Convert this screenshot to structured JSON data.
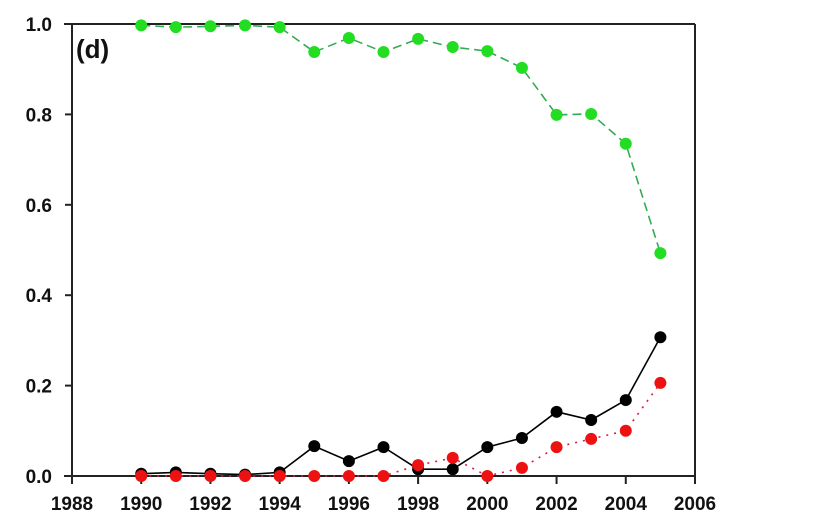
{
  "chart_data": {
    "type": "line",
    "title": "",
    "panel_label": "(d)",
    "xlabel": "",
    "ylabel": "",
    "xlim": [
      1988,
      2006
    ],
    "ylim": [
      0.0,
      1.0
    ],
    "x_ticks": [
      1988,
      1990,
      1992,
      1994,
      1996,
      1998,
      2000,
      2002,
      2004,
      2006
    ],
    "x_tick_labels": [
      "1988",
      "1990",
      "1992",
      "1994",
      "1996",
      "1998",
      "2000",
      "2002",
      "2004",
      "2006"
    ],
    "y_ticks": [
      0.0,
      0.2,
      0.4,
      0.6,
      0.8,
      1.0
    ],
    "y_tick_labels": [
      "0.0",
      "0.2",
      "0.4",
      "0.6",
      "0.8",
      "1.0"
    ],
    "grid": false,
    "legend": null,
    "x": [
      1990,
      1991,
      1992,
      1993,
      1994,
      1995,
      1996,
      1997,
      1998,
      1999,
      2000,
      2001,
      2002,
      2003,
      2004,
      2005
    ],
    "series": [
      {
        "name": "green series (dashed)",
        "color": "#22dd22",
        "line_color": "#33aa55",
        "line_style": "dashed",
        "values": [
          0.997,
          0.993,
          0.995,
          0.997,
          0.993,
          0.938,
          0.969,
          0.938,
          0.967,
          0.949,
          0.94,
          0.903,
          0.799,
          0.801,
          0.735,
          0.493
        ]
      },
      {
        "name": "black series (solid)",
        "color": "#000000",
        "line_color": "#000000",
        "line_style": "solid",
        "values": [
          0.005,
          0.008,
          0.005,
          0.003,
          0.008,
          0.066,
          0.033,
          0.064,
          0.015,
          0.015,
          0.064,
          0.084,
          0.142,
          0.124,
          0.168,
          0.307
        ]
      },
      {
        "name": "red series (dotted)",
        "color": "#ee1111",
        "line_color": "#cc2244",
        "line_style": "dotted",
        "values": [
          0.0,
          0.0,
          0.0,
          0.0,
          0.0,
          0.0,
          0.0,
          0.0,
          0.024,
          0.04,
          0.0,
          0.018,
          0.064,
          0.082,
          0.1,
          0.206
        ]
      }
    ]
  }
}
